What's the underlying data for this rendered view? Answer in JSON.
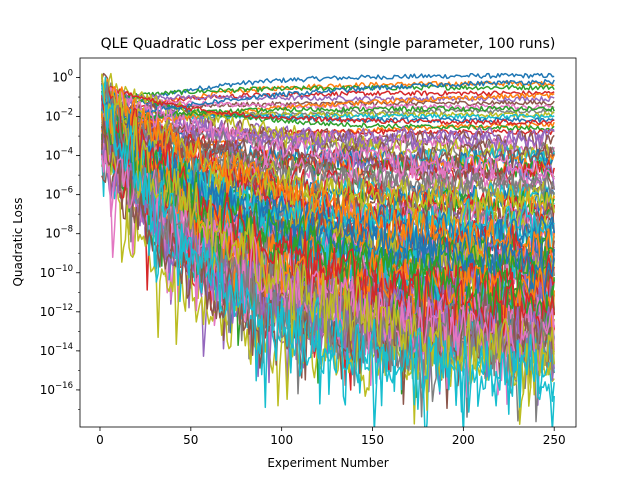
{
  "chart_data": {
    "type": "line",
    "title": "QLE Quadratic Loss per experiment (single parameter, 100 runs)",
    "xlabel": "Experiment Number",
    "ylabel": "Quadratic Loss",
    "xlim": [
      -11,
      262
    ],
    "ylim_log10": [
      -17.9,
      1.0
    ],
    "yscale": "log",
    "grid": false,
    "legend": "none",
    "x_ticks": [
      0,
      50,
      100,
      150,
      200,
      250
    ],
    "y_ticks_log10": [
      -16,
      -14,
      -12,
      -10,
      -8,
      -6,
      -4,
      -2,
      0
    ],
    "y_tick_base": "10",
    "x_range": [
      1,
      250
    ],
    "num_runs": 100,
    "color_cycle": [
      "#1f77b4",
      "#ff7f0e",
      "#2ca02c",
      "#d62728",
      "#9467bd",
      "#8c564b",
      "#e377c2",
      "#7f7f7f",
      "#bcbd22",
      "#17becf"
    ],
    "series_final_log10": [
      0.1,
      -0.3,
      -0.5,
      -0.8,
      -1.1,
      -1.3,
      -1.5,
      -1.7,
      -1.9,
      -2.0,
      -2.2,
      -2.4,
      -2.6,
      -2.8,
      -3.0,
      -3.2,
      -3.4,
      -3.6,
      -3.8,
      -4.0,
      -4.2,
      -4.4,
      -4.6,
      -4.8,
      -5.0,
      -5.2,
      -5.4,
      -5.6,
      -5.8,
      -6.0,
      -6.2,
      -6.4,
      -6.6,
      -6.8,
      -7.0,
      -7.2,
      -7.4,
      -7.6,
      -7.8,
      -8.0,
      -8.2,
      -8.4,
      -8.6,
      -8.8,
      -9.0,
      -9.2,
      -9.4,
      -9.6,
      -9.8,
      -10.0,
      -10.2,
      -10.4,
      -10.6,
      -10.8,
      -11.0,
      -11.2,
      -11.4,
      -11.6,
      -11.8,
      -12.0,
      -12.2,
      -12.4,
      -12.6,
      -12.8,
      -13.0,
      -13.2,
      -13.4,
      -13.6,
      -13.8,
      -14.0,
      -0.2,
      -0.9,
      -1.6,
      -2.3,
      -3.1,
      -3.9,
      -4.7,
      -5.5,
      -6.3,
      -7.1,
      -7.9,
      -8.7,
      -9.5,
      -10.3,
      -11.1,
      -11.9,
      -12.7,
      -13.5,
      -14.2,
      -14.6,
      -9.1,
      -10.9,
      -11.5,
      -12.3,
      -12.9,
      -13.3,
      -13.7,
      -14.1,
      -14.4,
      -14.8
    ]
  }
}
